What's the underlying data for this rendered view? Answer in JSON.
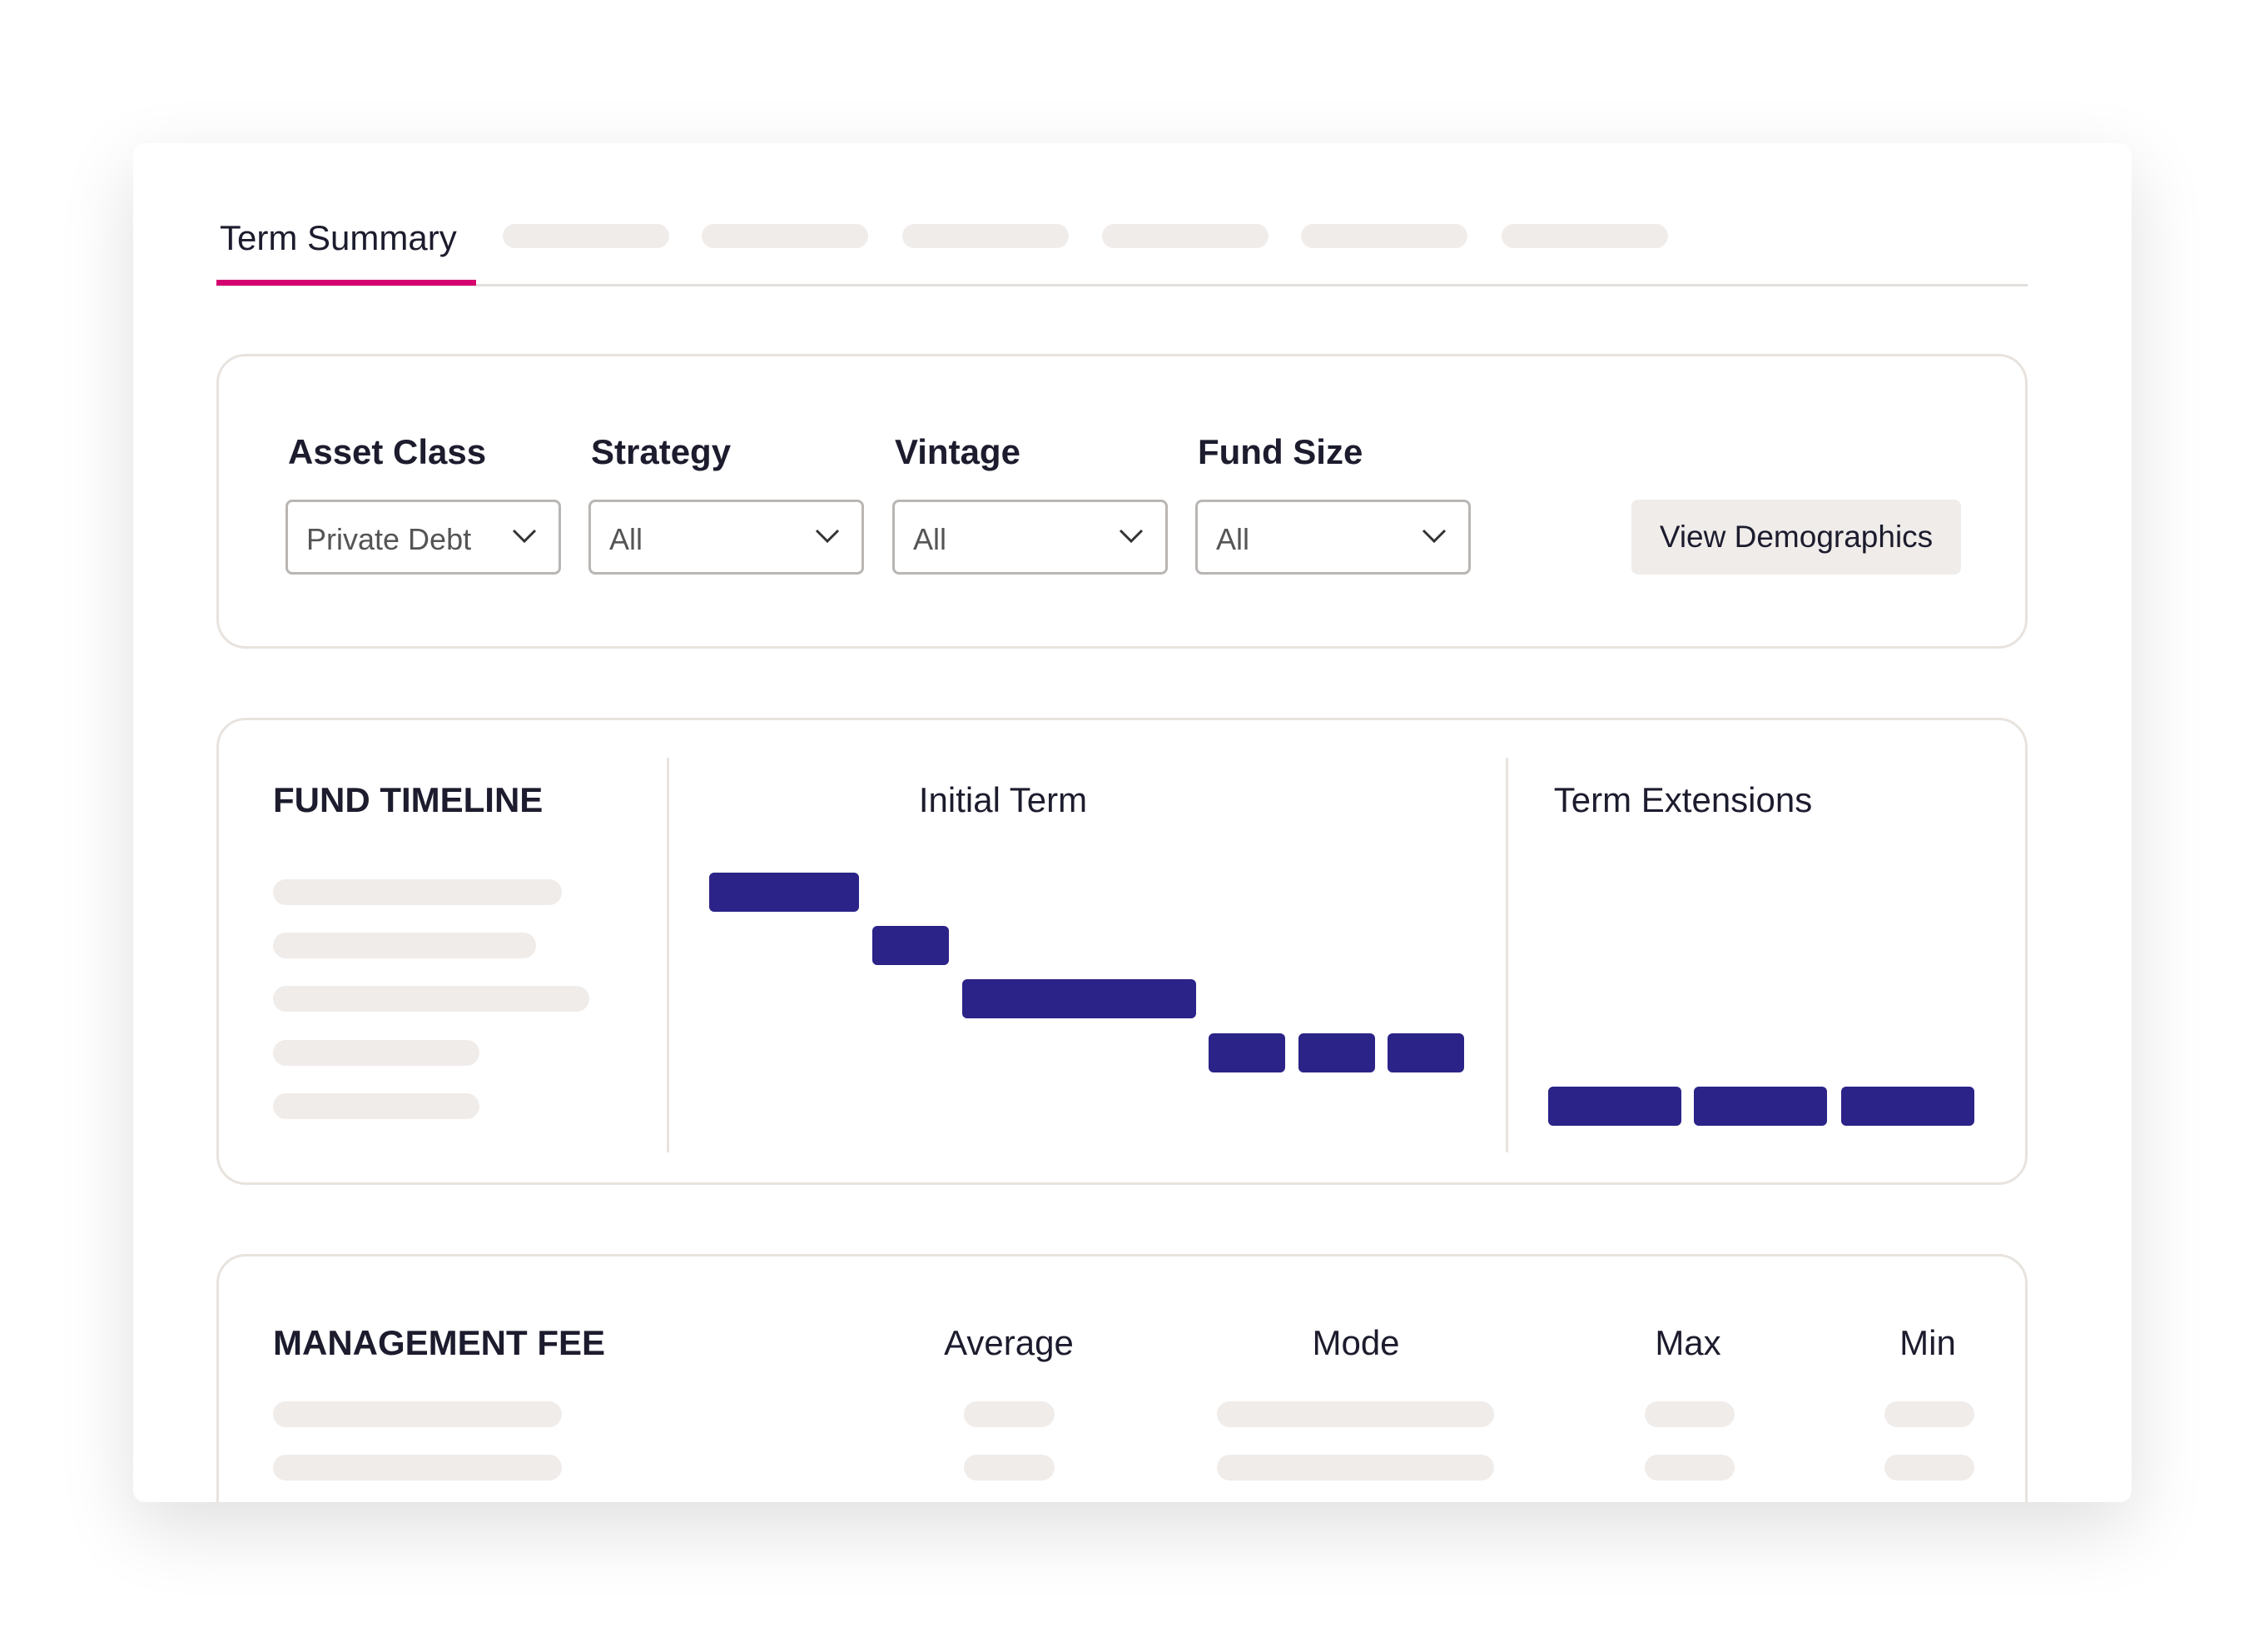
{
  "tabs": {
    "active": "Term Summary"
  },
  "filters": [
    {
      "label": "Asset Class",
      "value": "Private Debt"
    },
    {
      "label": "Strategy",
      "value": "All"
    },
    {
      "label": "Vintage",
      "value": "All"
    },
    {
      "label": "Fund Size",
      "value": "All"
    }
  ],
  "button": "View Demographics",
  "timeline": {
    "title": "FUND TIMELINE",
    "initial_term": "Initial Term",
    "term_extensions": "Term Extensions"
  },
  "management_fee": {
    "title": "MANAGEMENT FEE",
    "columns": [
      "Average",
      "Mode",
      "Max",
      "Min"
    ]
  }
}
